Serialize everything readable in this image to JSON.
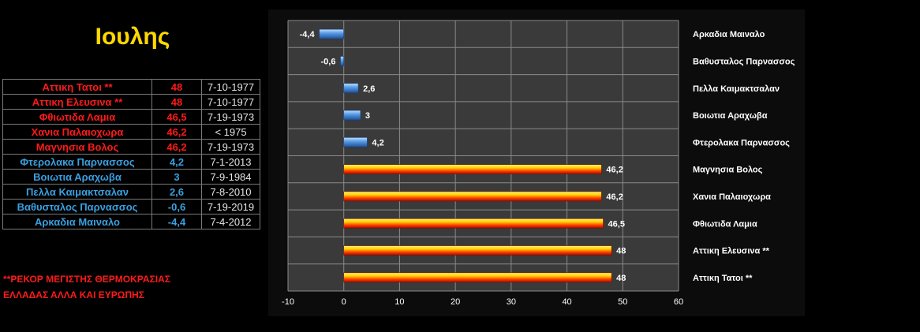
{
  "title": "Ιουλης",
  "colors": {
    "hot": "#ff1a1a",
    "cold": "#3aa0e0",
    "title": "#ffd800"
  },
  "table": {
    "rows": [
      {
        "name": "Αττικη Τατοι **",
        "value": "48",
        "date": "7-10-1977",
        "kind": "hot"
      },
      {
        "name": "Αττικη Ελευσινα **",
        "value": "48",
        "date": "7-10-1977",
        "kind": "hot"
      },
      {
        "name": "Φθιωτιδα Λαμια",
        "value": "46,5",
        "date": "7-19-1973",
        "kind": "hot"
      },
      {
        "name": "Χανια Παλαιοχωρα",
        "value": "46,2",
        "date": "< 1975",
        "kind": "hot"
      },
      {
        "name": "Μαγνησια Βολος",
        "value": "46,2",
        "date": "7-19-1973",
        "kind": "hot"
      },
      {
        "name": "Φτερολακα Παρνασσος",
        "value": "4,2",
        "date": "7-1-2013",
        "kind": "cold"
      },
      {
        "name": "Βοιωτια Αραχωβα",
        "value": "3",
        "date": "7-9-1984",
        "kind": "cold"
      },
      {
        "name": "Πελλα Καιμακτσαλαν",
        "value": "2,6",
        "date": "7-8-2010",
        "kind": "cold"
      },
      {
        "name": "Βαθυσταλος Παρνασσος",
        "value": "-0,6",
        "date": "7-19-2019",
        "kind": "cold"
      },
      {
        "name": "Αρκαδια Μαιναλο",
        "value": "-4,4",
        "date": "7-4-2012",
        "kind": "cold"
      }
    ]
  },
  "note": {
    "line1": "**ΡΕΚΟΡ ΜΕΓΙΣΤΗΣ ΘΕΡΜΟΚΡΑΣΙΑΣ",
    "line2": "ΕΛΛΑΔΑΣ ΑΛΛΑ ΚΑΙ ΕΥΡΩΠΗΣ"
  },
  "chart_data": {
    "type": "bar",
    "orientation": "horizontal",
    "categories": [
      "Αρκαδια Μαιναλο",
      "Βαθυσταλος Παρνασσος",
      "Πελλα Καιμακτσαλαν",
      "Βοιωτια Αραχωβα",
      "Φτερολακα Παρνασσος",
      "Μαγνησια Βολος",
      "Χανια Παλαιοχωρα",
      "Φθιωτιδα Λαμια",
      "Αττικη Ελευσινα  **",
      "Αττικη Τατοι **"
    ],
    "values": [
      -4.4,
      -0.6,
      2.6,
      3,
      4.2,
      46.2,
      46.2,
      46.5,
      48,
      48
    ],
    "value_labels": [
      "-4,4",
      "-0,6",
      "2,6",
      "3",
      "4,2",
      "46,2",
      "46,2",
      "46,5",
      "48",
      "48"
    ],
    "bar_kind": [
      "cold",
      "cold",
      "cold",
      "cold",
      "cold",
      "hot",
      "hot",
      "hot",
      "hot",
      "hot"
    ],
    "xlim": [
      -10,
      60
    ],
    "xticks": [
      "-10",
      "0",
      "10",
      "20",
      "30",
      "40",
      "50",
      "60"
    ],
    "category_labels_side": "right",
    "grid": true
  }
}
